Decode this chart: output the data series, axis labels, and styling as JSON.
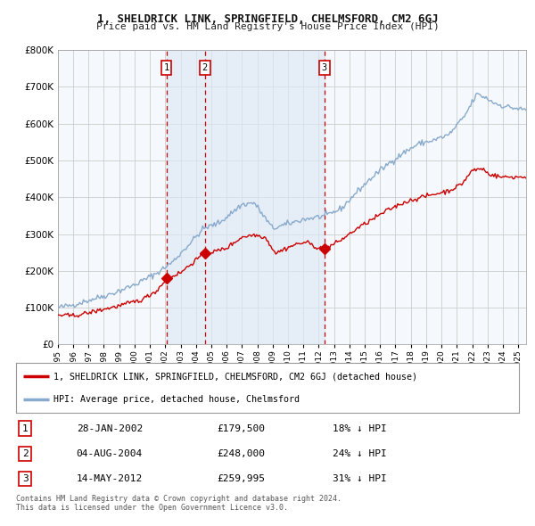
{
  "title": "1, SHELDRICK LINK, SPRINGFIELD, CHELMSFORD, CM2 6GJ",
  "subtitle": "Price paid vs. HM Land Registry's House Price Index (HPI)",
  "legend_property": "1, SHELDRICK LINK, SPRINGFIELD, CHELMSFORD, CM2 6GJ (detached house)",
  "legend_hpi": "HPI: Average price, detached house, Chelmsford",
  "transactions": [
    {
      "num": 1,
      "date": "28-JAN-2002",
      "price": 179500,
      "pct": "18%",
      "dir": "↓",
      "year_x": 2002.08
    },
    {
      "num": 2,
      "date": "04-AUG-2004",
      "price": 248000,
      "pct": "24%",
      "dir": "↓",
      "year_x": 2004.59
    },
    {
      "num": 3,
      "date": "14-MAY-2012",
      "price": 259995,
      "pct": "31%",
      "dir": "↓",
      "year_x": 2012.37
    }
  ],
  "vline1_x": 2002.08,
  "vline2_x": 2004.59,
  "vline3_x": 2012.37,
  "shade_x1": 2002.08,
  "shade_x2": 2012.37,
  "ylim": [
    0,
    800000
  ],
  "yticks": [
    0,
    100000,
    200000,
    300000,
    400000,
    500000,
    600000,
    700000,
    800000
  ],
  "xlim_start": 1995.0,
  "xlim_end": 2025.5,
  "property_color": "#cc0000",
  "hpi_color": "#88aacc",
  "plot_bg": "#f5f8fc",
  "grid_color": "#cccccc",
  "footnote": "Contains HM Land Registry data © Crown copyright and database right 2024.\nThis data is licensed under the Open Government Licence v3.0."
}
